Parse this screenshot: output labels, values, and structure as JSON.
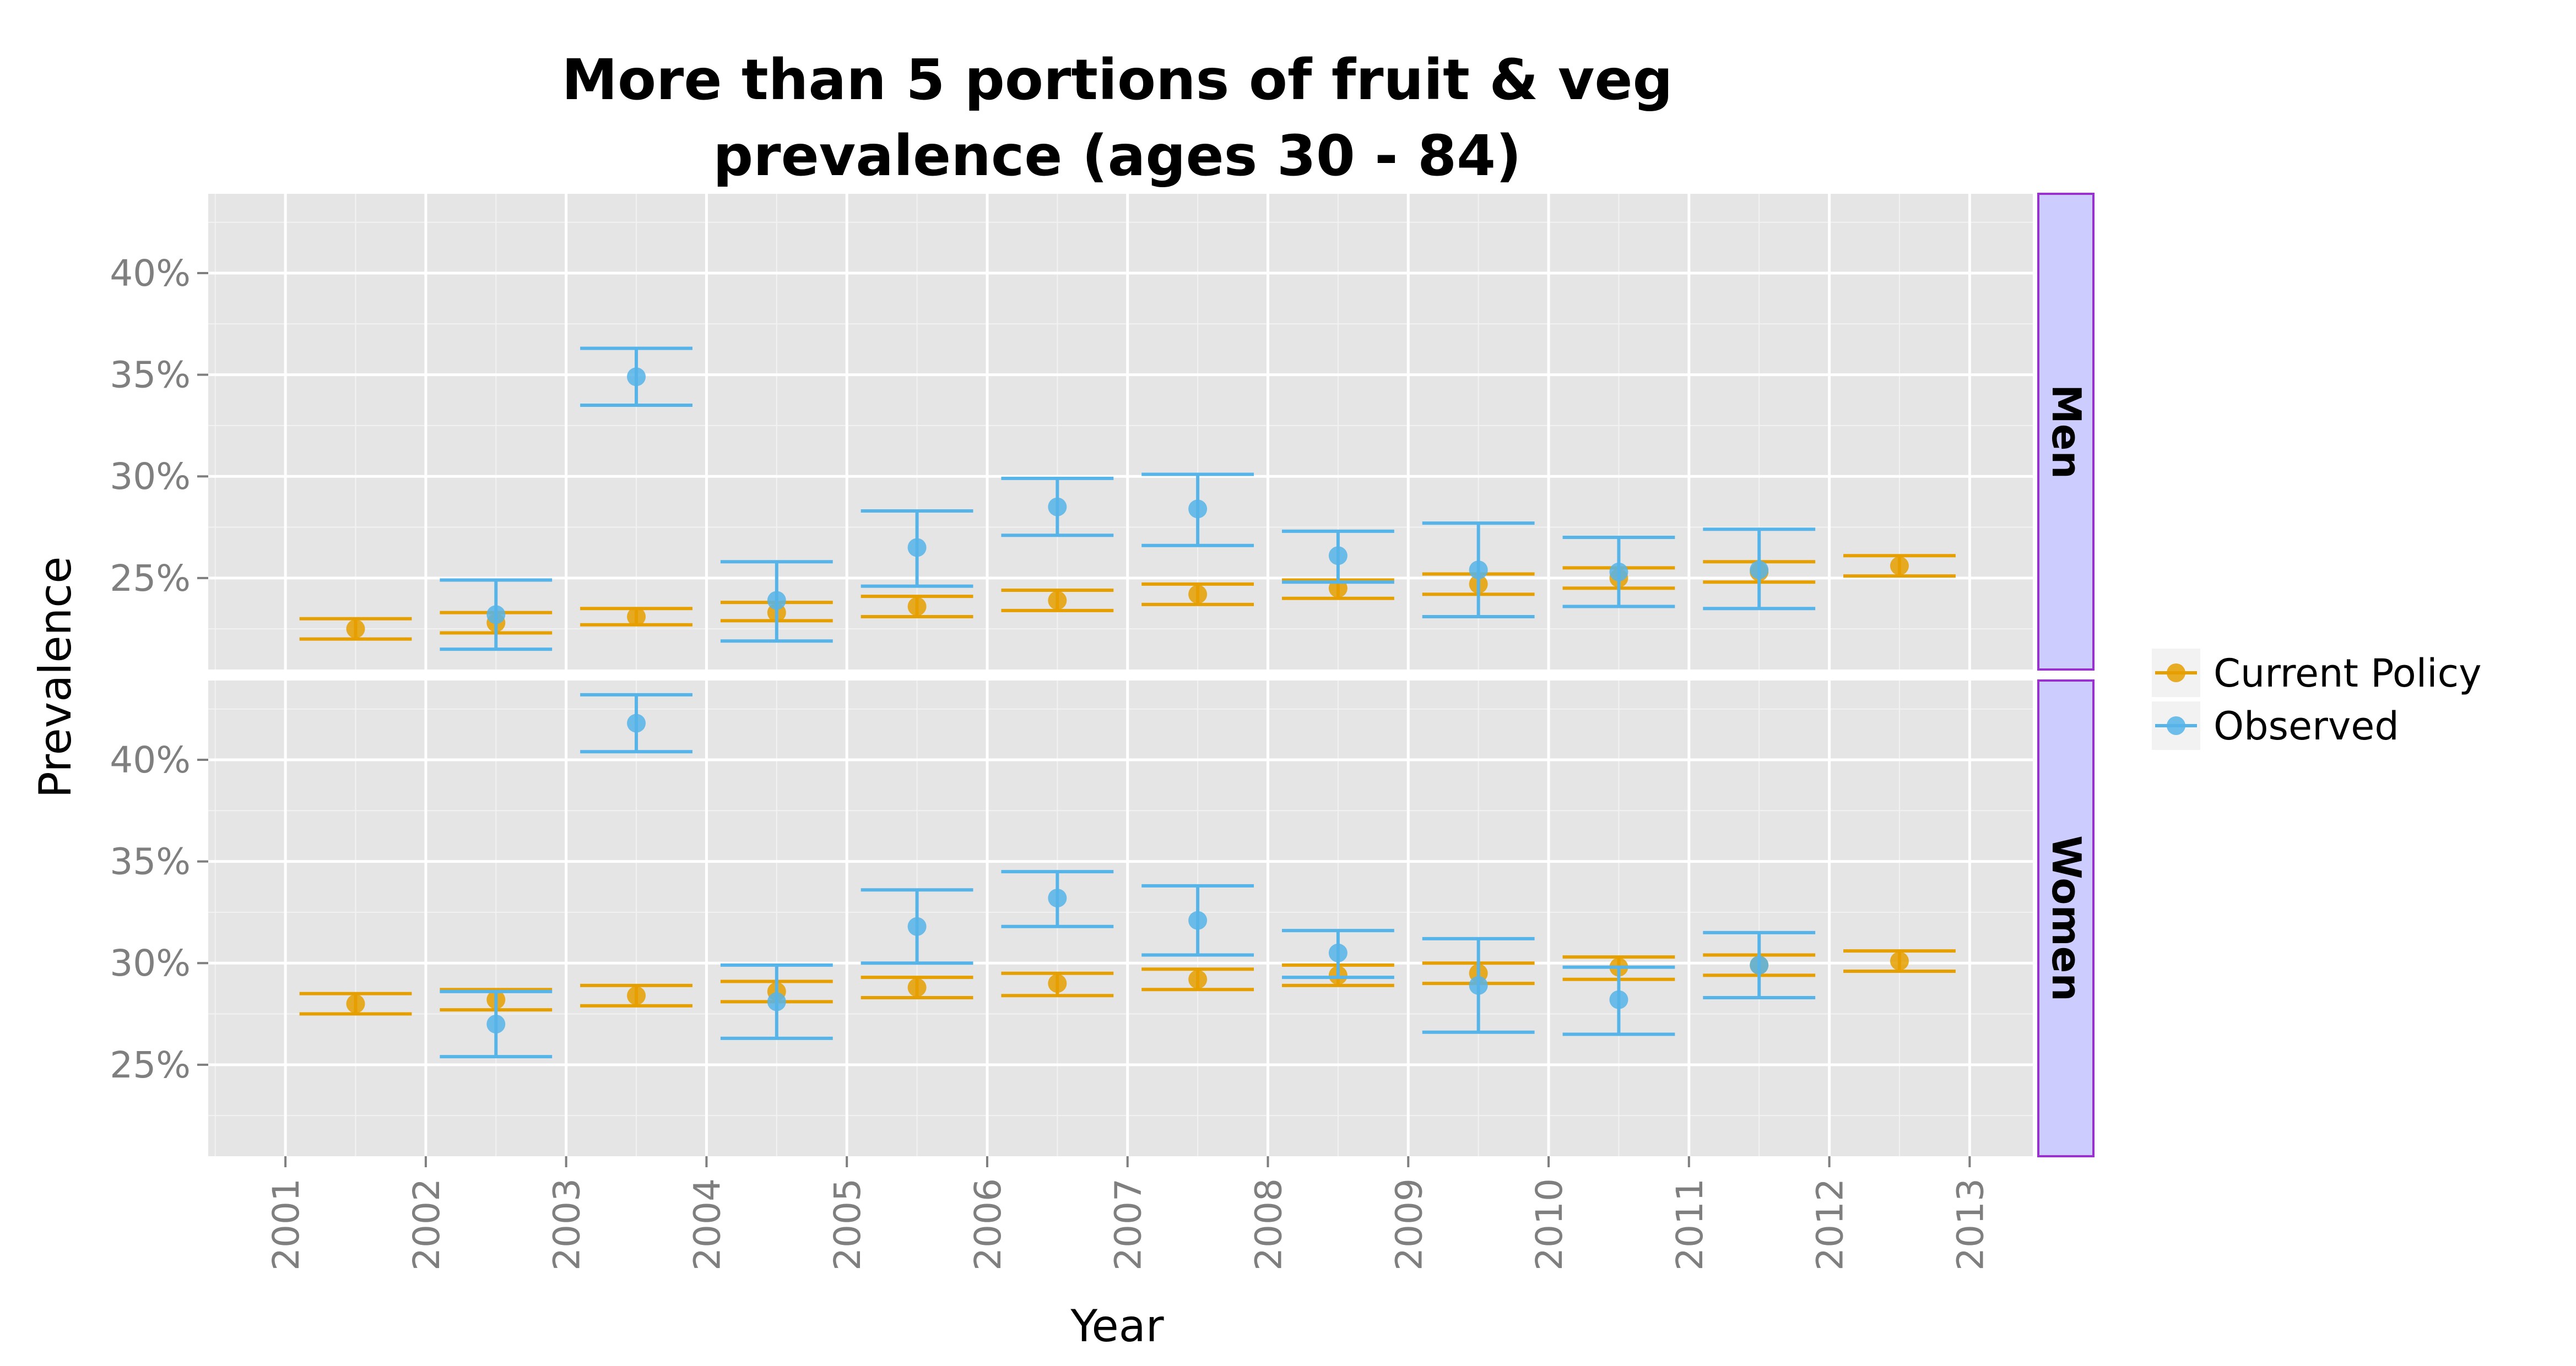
{
  "chart_data": {
    "type": "scatter",
    "title_lines": [
      "More than 5 portions of fruit & veg",
      "prevalence (ages 30 - 84)"
    ],
    "xlabel": "Year",
    "ylabel": "Prevalence",
    "x_ticks": [
      "2001",
      "2002",
      "2003",
      "2004",
      "2005",
      "2006",
      "2007",
      "2008",
      "2009",
      "2010",
      "2011",
      "2012",
      "2013"
    ],
    "xlim": [
      2000.45,
      2013.45
    ],
    "y_ticks": [
      25,
      30,
      35,
      40
    ],
    "y_tick_format": "%",
    "grid": true,
    "legend": {
      "placement": "right",
      "entries": [
        {
          "name": "Current Policy",
          "color": "#E69F00"
        },
        {
          "name": "Observed",
          "color": "#56B4E9"
        }
      ]
    },
    "panels": [
      {
        "name": "Men",
        "ylim": [
          20.5,
          43.9
        ],
        "series": [
          {
            "name": "Current Policy",
            "color": "#E69F00",
            "points": [
              {
                "x": 2001.5,
                "y": 22.5,
                "lo": 22.0,
                "hi": 23.0
              },
              {
                "x": 2002.5,
                "y": 22.8,
                "lo": 22.3,
                "hi": 23.3
              },
              {
                "x": 2003.5,
                "y": 23.1,
                "lo": 22.7,
                "hi": 23.5
              },
              {
                "x": 2004.5,
                "y": 23.3,
                "lo": 22.9,
                "hi": 23.8
              },
              {
                "x": 2005.5,
                "y": 23.6,
                "lo": 23.1,
                "hi": 24.1
              },
              {
                "x": 2006.5,
                "y": 23.9,
                "lo": 23.4,
                "hi": 24.4
              },
              {
                "x": 2007.5,
                "y": 24.2,
                "lo": 23.7,
                "hi": 24.7
              },
              {
                "x": 2008.5,
                "y": 24.5,
                "lo": 24.0,
                "hi": 24.9
              },
              {
                "x": 2009.5,
                "y": 24.7,
                "lo": 24.2,
                "hi": 25.2
              },
              {
                "x": 2010.5,
                "y": 25.0,
                "lo": 24.5,
                "hi": 25.5
              },
              {
                "x": 2011.5,
                "y": 25.3,
                "lo": 24.8,
                "hi": 25.8
              },
              {
                "x": 2012.5,
                "y": 25.6,
                "lo": 25.1,
                "hi": 26.1
              }
            ]
          },
          {
            "name": "Observed",
            "color": "#56B4E9",
            "points": [
              {
                "x": 2002.5,
                "y": 23.2,
                "lo": 21.5,
                "hi": 24.9
              },
              {
                "x": 2003.5,
                "y": 34.9,
                "lo": 33.5,
                "hi": 36.3
              },
              {
                "x": 2004.5,
                "y": 23.9,
                "lo": 21.9,
                "hi": 25.8
              },
              {
                "x": 2005.5,
                "y": 26.5,
                "lo": 24.6,
                "hi": 28.3
              },
              {
                "x": 2006.5,
                "y": 28.5,
                "lo": 27.1,
                "hi": 29.9
              },
              {
                "x": 2007.5,
                "y": 28.4,
                "lo": 26.6,
                "hi": 30.1
              },
              {
                "x": 2008.5,
                "y": 26.1,
                "lo": 24.8,
                "hi": 27.3
              },
              {
                "x": 2009.5,
                "y": 25.4,
                "lo": 23.1,
                "hi": 27.7
              },
              {
                "x": 2010.5,
                "y": 25.3,
                "lo": 23.6,
                "hi": 27.0
              },
              {
                "x": 2011.5,
                "y": 25.4,
                "lo": 23.5,
                "hi": 27.4
              }
            ]
          }
        ]
      },
      {
        "name": "Women",
        "ylim": [
          20.5,
          43.9
        ],
        "series": [
          {
            "name": "Current Policy",
            "color": "#E69F00",
            "points": [
              {
                "x": 2001.5,
                "y": 28.0,
                "lo": 27.5,
                "hi": 28.5
              },
              {
                "x": 2002.5,
                "y": 28.2,
                "lo": 27.7,
                "hi": 28.7
              },
              {
                "x": 2003.5,
                "y": 28.4,
                "lo": 27.9,
                "hi": 28.9
              },
              {
                "x": 2004.5,
                "y": 28.6,
                "lo": 28.1,
                "hi": 29.1
              },
              {
                "x": 2005.5,
                "y": 28.8,
                "lo": 28.3,
                "hi": 29.3
              },
              {
                "x": 2006.5,
                "y": 29.0,
                "lo": 28.4,
                "hi": 29.5
              },
              {
                "x": 2007.5,
                "y": 29.2,
                "lo": 28.7,
                "hi": 29.7
              },
              {
                "x": 2008.5,
                "y": 29.4,
                "lo": 28.9,
                "hi": 29.9
              },
              {
                "x": 2009.5,
                "y": 29.5,
                "lo": 29.0,
                "hi": 30.0
              },
              {
                "x": 2010.5,
                "y": 29.8,
                "lo": 29.2,
                "hi": 30.3
              },
              {
                "x": 2011.5,
                "y": 29.9,
                "lo": 29.4,
                "hi": 30.4
              },
              {
                "x": 2012.5,
                "y": 30.1,
                "lo": 29.6,
                "hi": 30.6
              }
            ]
          },
          {
            "name": "Observed",
            "color": "#56B4E9",
            "points": [
              {
                "x": 2002.5,
                "y": 27.0,
                "lo": 25.4,
                "hi": 28.6
              },
              {
                "x": 2003.5,
                "y": 41.8,
                "lo": 40.4,
                "hi": 43.2
              },
              {
                "x": 2004.5,
                "y": 28.1,
                "lo": 26.3,
                "hi": 29.9
              },
              {
                "x": 2005.5,
                "y": 31.8,
                "lo": 30.0,
                "hi": 33.6
              },
              {
                "x": 2006.5,
                "y": 33.2,
                "lo": 31.8,
                "hi": 34.5
              },
              {
                "x": 2007.5,
                "y": 32.1,
                "lo": 30.4,
                "hi": 33.8
              },
              {
                "x": 2008.5,
                "y": 30.5,
                "lo": 29.3,
                "hi": 31.6
              },
              {
                "x": 2009.5,
                "y": 28.9,
                "lo": 26.6,
                "hi": 31.2
              },
              {
                "x": 2010.5,
                "y": 28.2,
                "lo": 26.5,
                "hi": 29.8
              },
              {
                "x": 2011.5,
                "y": 29.9,
                "lo": 28.3,
                "hi": 31.5
              }
            ]
          }
        ]
      }
    ]
  }
}
